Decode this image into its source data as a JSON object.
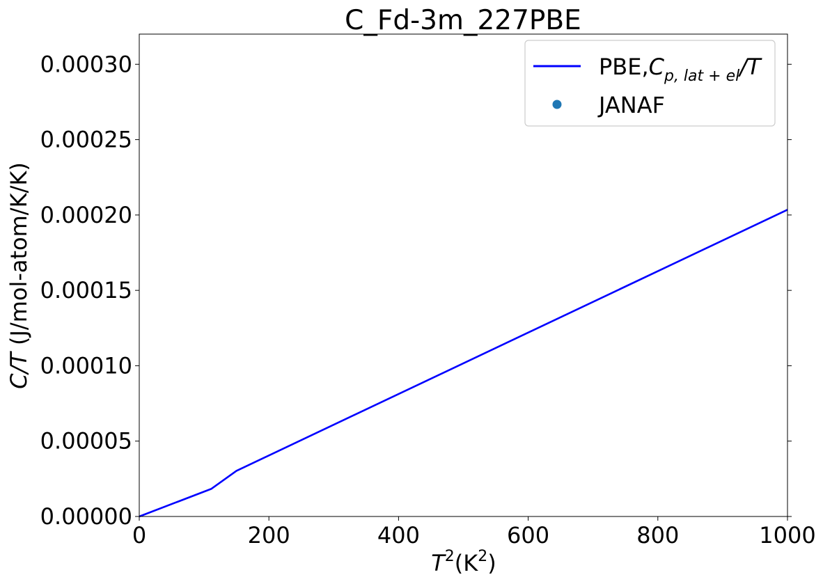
{
  "chart_data": {
    "type": "line",
    "title": "C_Fd-3m_227PBE",
    "xlabel": {
      "base": "T",
      "sup1": "2",
      "mid": "(K",
      "sup2": "2",
      "end": ")"
    },
    "ylabel": {
      "italic": "C/T",
      "rest": " (J/mol-atom/K/K)"
    },
    "xlim": [
      0,
      1000
    ],
    "ylim": [
      0,
      0.00032
    ],
    "x_ticks": [
      0,
      200,
      400,
      600,
      800,
      1000
    ],
    "x_tick_labels": [
      "0",
      "200",
      "400",
      "600",
      "800",
      "1000"
    ],
    "y_ticks": [
      0,
      5e-05,
      0.0001,
      0.00015,
      0.0002,
      0.00025,
      0.0003
    ],
    "y_tick_labels": [
      "0.00000",
      "0.00005",
      "0.00010",
      "0.00015",
      "0.00020",
      "0.00025",
      "0.00030"
    ],
    "grid": false,
    "legend_position": "top-right",
    "series": [
      {
        "name": "PBE,C_{p,lat+el}/T",
        "legend": {
          "prefix": "PBE,",
          "symbol": "C",
          "subscript": "p, lat + el",
          "suffix": "/T"
        },
        "kind": "line",
        "color": "#0000ff",
        "x": [
          0,
          111,
          150,
          1000
        ],
        "y": [
          0,
          1.83e-05,
          3.03e-05,
          0.0002035
        ]
      },
      {
        "name": "JANAF",
        "legend": {
          "label": "JANAF"
        },
        "kind": "scatter",
        "color": "#1f77b4",
        "x": [],
        "y": []
      }
    ]
  }
}
